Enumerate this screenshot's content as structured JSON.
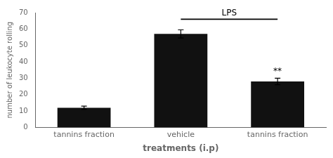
{
  "chart_data": {
    "type": "bar",
    "categories": [
      "tannins fraction",
      "vehicle",
      "tannins fraction"
    ],
    "values": [
      12,
      57,
      28
    ],
    "errors": [
      1,
      2.5,
      2
    ],
    "color": "#111111",
    "xlabel": "treatments (i.p)",
    "ylabel": "number of leukocyte rolling",
    "ylim": [
      0,
      70
    ],
    "yticks": [
      0,
      10,
      20,
      30,
      40,
      50,
      60,
      70
    ],
    "grid": false,
    "annotations": [
      {
        "text": "LPS",
        "bracket": [
          1,
          2
        ],
        "y": 66
      },
      {
        "text": "**",
        "index": 2
      }
    ]
  }
}
